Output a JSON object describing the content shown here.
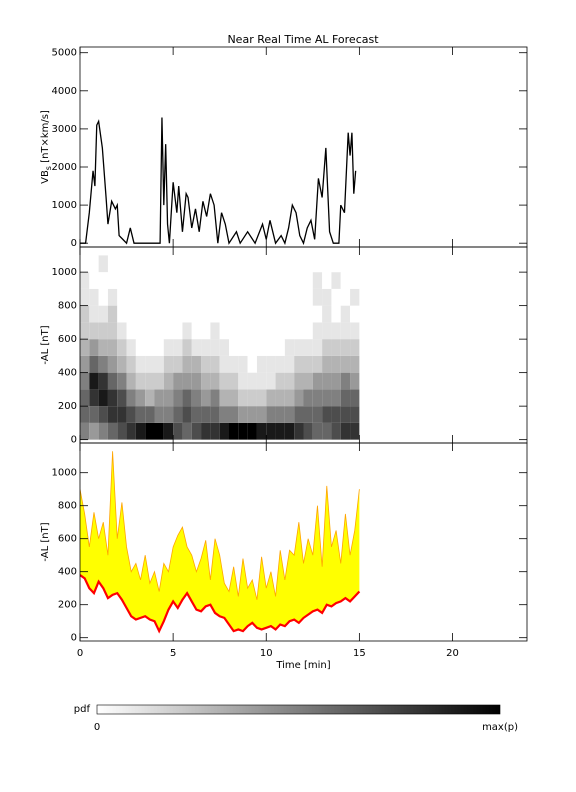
{
  "chart_data": [
    {
      "type": "line",
      "title": "Near Real Time AL Forecast",
      "ylabel": [
        "VB",
        "s",
        " [nT×km/s]"
      ],
      "x": [
        0,
        0.3,
        0.5,
        0.7,
        0.8,
        0.9,
        1.0,
        1.2,
        1.4,
        1.5,
        1.6,
        1.7,
        1.9,
        2.0,
        2.1,
        2.3,
        2.5,
        2.7,
        2.9,
        4.3,
        4.4,
        4.5,
        4.6,
        4.7,
        4.8,
        5.0,
        5.2,
        5.3,
        5.5,
        5.7,
        5.8,
        6.0,
        6.2,
        6.4,
        6.6,
        6.8,
        7.0,
        7.2,
        7.4,
        7.6,
        7.8,
        8.0,
        8.4,
        8.6,
        9.0,
        9.4,
        9.8,
        10.0,
        10.2,
        10.5,
        10.8,
        11.0,
        11.2,
        11.4,
        11.6,
        11.8,
        12.0,
        12.2,
        12.4,
        12.6,
        12.8,
        13.0,
        13.2,
        13.4,
        13.6,
        13.9,
        14.0,
        14.2,
        14.4,
        14.5,
        14.6,
        14.7,
        14.8
      ],
      "values": [
        0,
        0,
        800,
        1900,
        1500,
        3100,
        3200,
        2500,
        1200,
        500,
        800,
        1100,
        900,
        1000,
        200,
        100,
        0,
        400,
        0,
        0,
        3300,
        1000,
        2600,
        500,
        0,
        1600,
        800,
        1500,
        300,
        1300,
        1200,
        400,
        900,
        300,
        1100,
        700,
        1300,
        1000,
        0,
        800,
        500,
        0,
        300,
        0,
        300,
        0,
        500,
        100,
        600,
        0,
        200,
        0,
        400,
        1000,
        800,
        200,
        0,
        400,
        600,
        100,
        1700,
        1200,
        2500,
        300,
        0,
        0,
        1000,
        800,
        2900,
        2300,
        2900,
        1300,
        1900
      ],
      "color": "#000000",
      "xlim": [
        0,
        24
      ],
      "ylim": [
        -100,
        5150
      ],
      "xticks": [
        0,
        5,
        10,
        15,
        20
      ],
      "yticks": [
        0,
        1000,
        2000,
        3000,
        4000,
        5000
      ]
    },
    {
      "type": "heatmap",
      "ylabel": "-AL [nT]",
      "x_edges": [
        0,
        0.5,
        1,
        1.5,
        2,
        2.5,
        3,
        3.5,
        4,
        4.5,
        5,
        5.5,
        6,
        6.5,
        7,
        7.5,
        8,
        8.5,
        9,
        9.5,
        10,
        10.5,
        11,
        11.5,
        12,
        12.5,
        13,
        13.5,
        14,
        14.5,
        15
      ],
      "y_edges": [
        0,
        100,
        200,
        300,
        400,
        500,
        600,
        700,
        800,
        900,
        1000,
        1100
      ],
      "z": [
        [
          0.5,
          0.6,
          0.6,
          0.5,
          0.4,
          0.3,
          0.2,
          0.2,
          0.1,
          0.1,
          0
        ],
        [
          0.4,
          0.6,
          0.8,
          0.9,
          0.6,
          0.4,
          0.2,
          0.1,
          0.1,
          0,
          0
        ],
        [
          0.5,
          0.7,
          0.9,
          0.8,
          0.5,
          0.3,
          0.2,
          0.1,
          0,
          0,
          0.1
        ],
        [
          0.6,
          0.8,
          0.8,
          0.6,
          0.4,
          0.3,
          0.2,
          0.2,
          0.1,
          0,
          0
        ],
        [
          0.7,
          0.8,
          0.7,
          0.5,
          0.3,
          0.2,
          0.1,
          0,
          0,
          0,
          0
        ],
        [
          0.8,
          0.7,
          0.5,
          0.3,
          0.2,
          0.1,
          0,
          0,
          0,
          0,
          0
        ],
        [
          0.9,
          0.6,
          0.4,
          0.2,
          0.1,
          0,
          0,
          0,
          0,
          0,
          0
        ],
        [
          1.0,
          0.6,
          0.3,
          0.2,
          0.1,
          0,
          0,
          0,
          0,
          0,
          0
        ],
        [
          1.0,
          0.5,
          0.4,
          0.2,
          0.1,
          0,
          0,
          0,
          0,
          0,
          0
        ],
        [
          0.9,
          0.5,
          0.4,
          0.3,
          0.2,
          0.1,
          0,
          0,
          0,
          0,
          0
        ],
        [
          0.7,
          0.6,
          0.5,
          0.4,
          0.2,
          0.1,
          0,
          0,
          0,
          0,
          0
        ],
        [
          0.6,
          0.7,
          0.6,
          0.4,
          0.3,
          0.2,
          0.1,
          0,
          0,
          0,
          0
        ],
        [
          0.7,
          0.6,
          0.5,
          0.4,
          0.3,
          0.1,
          0,
          0,
          0,
          0,
          0
        ],
        [
          0.8,
          0.6,
          0.4,
          0.3,
          0.2,
          0.1,
          0,
          0,
          0,
          0,
          0
        ],
        [
          0.8,
          0.6,
          0.5,
          0.3,
          0.2,
          0.1,
          0.1,
          0,
          0,
          0,
          0
        ],
        [
          0.9,
          0.5,
          0.3,
          0.2,
          0.1,
          0.1,
          0,
          0,
          0,
          0,
          0
        ],
        [
          1.0,
          0.5,
          0.3,
          0.2,
          0.1,
          0,
          0,
          0,
          0,
          0,
          0
        ],
        [
          1.0,
          0.4,
          0.2,
          0.1,
          0.1,
          0,
          0,
          0,
          0,
          0,
          0
        ],
        [
          1.0,
          0.4,
          0.2,
          0.1,
          0,
          0,
          0,
          0,
          0,
          0,
          0
        ],
        [
          0.9,
          0.4,
          0.2,
          0.1,
          0.1,
          0,
          0,
          0,
          0,
          0,
          0
        ],
        [
          0.9,
          0.5,
          0.3,
          0.1,
          0.1,
          0,
          0,
          0,
          0,
          0,
          0
        ],
        [
          0.9,
          0.5,
          0.3,
          0.2,
          0.1,
          0,
          0,
          0,
          0,
          0,
          0
        ],
        [
          0.9,
          0.5,
          0.3,
          0.2,
          0.1,
          0.1,
          0,
          0,
          0,
          0,
          0
        ],
        [
          0.8,
          0.6,
          0.4,
          0.3,
          0.2,
          0.1,
          0,
          0,
          0,
          0,
          0
        ],
        [
          0.7,
          0.6,
          0.5,
          0.3,
          0.2,
          0.1,
          0,
          0,
          0,
          0,
          0
        ],
        [
          0.6,
          0.6,
          0.5,
          0.4,
          0.2,
          0.1,
          0.1,
          0,
          0.1,
          0.1,
          0
        ],
        [
          0.6,
          0.7,
          0.5,
          0.4,
          0.3,
          0.2,
          0.1,
          0.1,
          0.1,
          0,
          0
        ],
        [
          0.7,
          0.7,
          0.5,
          0.4,
          0.3,
          0.2,
          0.1,
          0,
          0,
          0.1,
          0
        ],
        [
          0.8,
          0.7,
          0.6,
          0.5,
          0.3,
          0.2,
          0.1,
          0.1,
          0,
          0,
          0
        ],
        [
          0.8,
          0.7,
          0.6,
          0.4,
          0.3,
          0.2,
          0.1,
          0,
          0.1,
          0,
          0
        ]
      ],
      "xlim": [
        0,
        24
      ],
      "ylim": [
        -20,
        1150
      ],
      "xticks": [
        0,
        5,
        10,
        15,
        20
      ],
      "yticks": [
        0,
        200,
        400,
        600,
        800,
        1000
      ],
      "colorbar": {
        "label": "pdf",
        "min_label": "0",
        "max_label": "max(p)"
      }
    },
    {
      "type": "band",
      "ylabel": "-AL [nT]",
      "xlabel": "Time [min]",
      "x": [
        0,
        0.25,
        0.5,
        0.75,
        1,
        1.25,
        1.5,
        1.75,
        2,
        2.25,
        2.5,
        2.75,
        3,
        3.25,
        3.5,
        3.75,
        4,
        4.25,
        4.5,
        4.75,
        5,
        5.25,
        5.5,
        5.75,
        6,
        6.25,
        6.5,
        6.75,
        7,
        7.25,
        7.5,
        7.75,
        8,
        8.25,
        8.5,
        8.75,
        9,
        9.25,
        9.5,
        9.75,
        10,
        10.25,
        10.5,
        10.75,
        11,
        11.25,
        11.5,
        11.75,
        12,
        12.25,
        12.5,
        12.75,
        13,
        13.25,
        13.5,
        13.75,
        14,
        14.25,
        14.5,
        14.75,
        15
      ],
      "series": [
        {
          "color": "#ff0000",
          "values": [
            380,
            360,
            300,
            270,
            340,
            300,
            240,
            260,
            270,
            230,
            180,
            130,
            110,
            120,
            130,
            110,
            100,
            40,
            100,
            170,
            220,
            180,
            230,
            270,
            220,
            170,
            160,
            190,
            200,
            150,
            130,
            120,
            80,
            40,
            50,
            40,
            70,
            90,
            60,
            50,
            60,
            70,
            50,
            80,
            70,
            100,
            110,
            90,
            120,
            140,
            160,
            170,
            150,
            200,
            190,
            210,
            220,
            240,
            220,
            250,
            280
          ]
        }
      ],
      "band": {
        "fill": "#ffff00",
        "edge_color": "#ffa500",
        "high": [
          900,
          750,
          550,
          760,
          600,
          700,
          500,
          1130,
          600,
          820,
          550,
          400,
          450,
          350,
          500,
          330,
          400,
          280,
          450,
          400,
          550,
          620,
          670,
          550,
          500,
          400,
          480,
          590,
          350,
          600,
          500,
          330,
          280,
          430,
          250,
          480,
          300,
          350,
          230,
          490,
          300,
          400,
          250,
          530,
          350,
          530,
          500,
          700,
          450,
          600,
          500,
          800,
          430,
          920,
          550,
          650,
          450,
          750,
          500,
          650,
          900
        ]
      },
      "xlim": [
        0,
        24
      ],
      "ylim": [
        -20,
        1180
      ],
      "xticks": [
        0,
        5,
        10,
        15,
        20
      ],
      "yticks": [
        0,
        200,
        400,
        600,
        800,
        1000
      ]
    }
  ]
}
